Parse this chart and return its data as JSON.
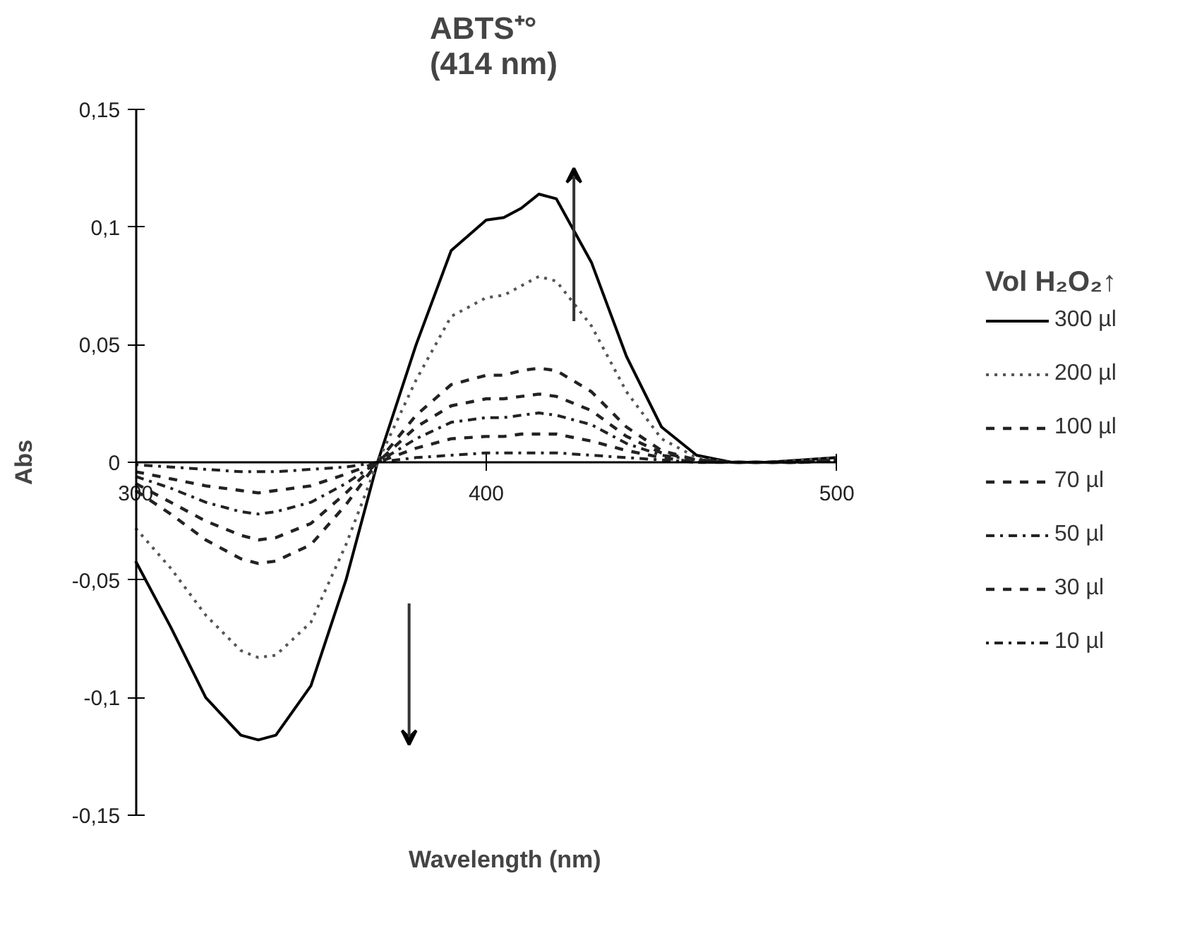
{
  "chart_data": {
    "type": "line",
    "title": "ABTS⁺°\n(414 nm)",
    "xlabel": "Wavelength (nm)",
    "ylabel": "Abs",
    "legend_title": "Vol H₂O₂↑",
    "x": [
      300,
      310,
      320,
      330,
      335,
      340,
      350,
      360,
      369,
      380,
      390,
      400,
      405,
      410,
      415,
      420,
      430,
      440,
      450,
      460,
      470,
      480,
      490,
      500
    ],
    "xlim": [
      300,
      500
    ],
    "xticks": [
      300,
      400,
      500
    ],
    "ylim": [
      -0.15,
      0.15
    ],
    "yticks": [
      {
        "value": -0.15,
        "label": "-0,15"
      },
      {
        "value": -0.1,
        "label": "-0,1"
      },
      {
        "value": -0.05,
        "label": "-0,05"
      },
      0,
      {
        "value": 0.05,
        "label": "0,05"
      },
      {
        "value": 0.1,
        "label": "0,1"
      },
      {
        "value": 0.15,
        "label": "0,15"
      }
    ],
    "grid": false,
    "legend": "right",
    "marker": "none",
    "series": [
      {
        "name": "300 µl",
        "color": "#000000",
        "line_style": "solid",
        "values": [
          -0.042,
          -0.07,
          -0.1,
          -0.116,
          -0.118,
          -0.116,
          -0.095,
          -0.05,
          0,
          0.05,
          0.09,
          0.103,
          0.104,
          0.108,
          0.114,
          0.112,
          0.085,
          0.045,
          0.015,
          0.003,
          0,
          0,
          0.001,
          0.002
        ]
      },
      {
        "name": "200 µl",
        "color": "#555555",
        "line_style": "dotted",
        "values": [
          -0.028,
          -0.045,
          -0.065,
          -0.08,
          -0.083,
          -0.082,
          -0.068,
          -0.035,
          0,
          0.035,
          0.062,
          0.07,
          0.071,
          0.075,
          0.079,
          0.077,
          0.058,
          0.03,
          0.01,
          0.002,
          0,
          0,
          0.001,
          0.002
        ]
      },
      {
        "name": "100 µl",
        "color": "#222222",
        "line_style": "dashed",
        "values": [
          -0.012,
          -0.022,
          -0.033,
          -0.041,
          -0.043,
          -0.042,
          -0.035,
          -0.018,
          0,
          0.02,
          0.033,
          0.037,
          0.037,
          0.039,
          0.04,
          0.039,
          0.03,
          0.015,
          0.005,
          0.001,
          0,
          0,
          0,
          0.001
        ]
      },
      {
        "name": "70 µl",
        "color": "#222222",
        "line_style": "dashed",
        "values": [
          -0.009,
          -0.017,
          -0.025,
          -0.031,
          -0.033,
          -0.032,
          -0.026,
          -0.013,
          0,
          0.015,
          0.024,
          0.027,
          0.027,
          0.028,
          0.029,
          0.028,
          0.022,
          0.011,
          0.004,
          0.001,
          0,
          0,
          0,
          0.001
        ]
      },
      {
        "name": "50 µl",
        "color": "#222222",
        "line_style": "dashdot",
        "values": [
          -0.006,
          -0.011,
          -0.017,
          -0.021,
          -0.022,
          -0.021,
          -0.017,
          -0.009,
          0,
          0.01,
          0.017,
          0.019,
          0.019,
          0.02,
          0.021,
          0.02,
          0.016,
          0.008,
          0.003,
          0.001,
          0,
          0,
          0,
          0.001
        ]
      },
      {
        "name": "30 µl",
        "color": "#222222",
        "line_style": "dashed",
        "values": [
          -0.004,
          -0.007,
          -0.01,
          -0.012,
          -0.013,
          -0.012,
          -0.01,
          -0.005,
          0,
          0.006,
          0.01,
          0.011,
          0.011,
          0.012,
          0.012,
          0.012,
          0.009,
          0.005,
          0.002,
          0,
          0,
          0,
          0,
          0.001
        ]
      },
      {
        "name": "10 µl",
        "color": "#222222",
        "line_style": "dotdash",
        "values": [
          -0.001,
          -0.002,
          -0.003,
          -0.004,
          -0.004,
          -0.004,
          -0.003,
          -0.002,
          0,
          0.002,
          0.003,
          0.004,
          0.004,
          0.004,
          0.004,
          0.004,
          0.003,
          0.002,
          0.001,
          0,
          0,
          0,
          0,
          0.001
        ]
      }
    ]
  }
}
